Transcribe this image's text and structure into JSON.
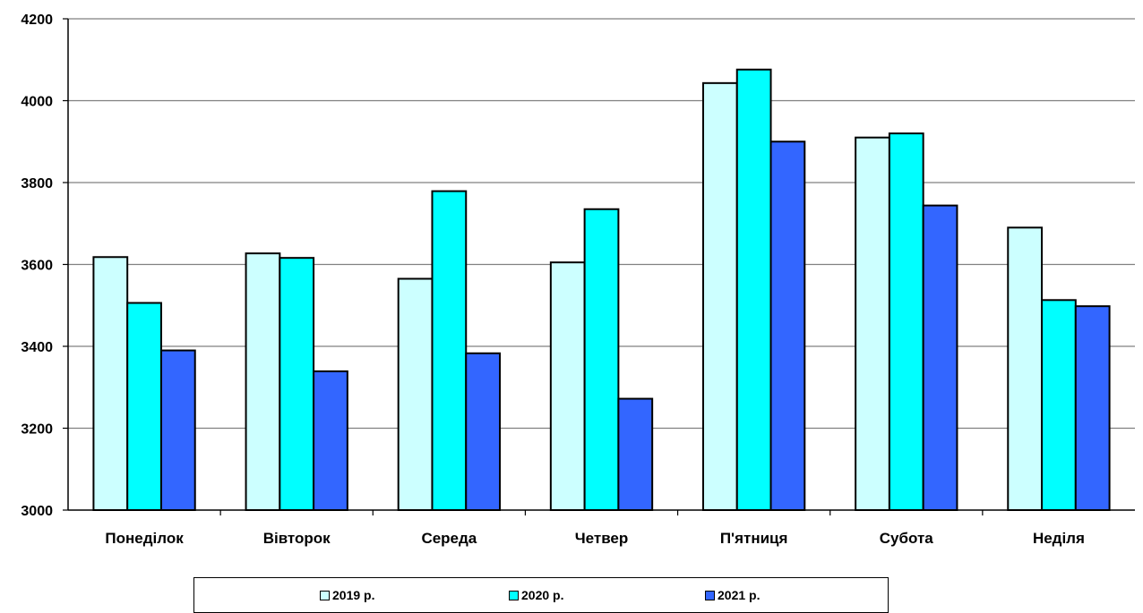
{
  "chart_data": {
    "type": "bar",
    "title": "",
    "xlabel": "",
    "ylabel": "",
    "categories": [
      "Понеділок",
      "Вівторок",
      "Середа",
      "Четвер",
      "П'ятниця",
      "Субота",
      "Неділя"
    ],
    "series": [
      {
        "name": "2019 р.",
        "color": "#ccffff",
        "values": [
          3618,
          3627,
          3565,
          3605,
          4043,
          3910,
          3690
        ]
      },
      {
        "name": "2020 р.",
        "color": "#00ffff",
        "values": [
          3506,
          3616,
          3779,
          3735,
          4076,
          3920,
          3513
        ]
      },
      {
        "name": "2021 р.",
        "color": "#3366ff",
        "values": [
          3390,
          3339,
          3383,
          3272,
          3900,
          3744,
          3498
        ]
      }
    ],
    "ylim": [
      3000,
      4200
    ],
    "yticks": [
      "3000",
      "3200",
      "3400",
      "3600",
      "3800",
      "4000",
      "4200"
    ],
    "grid": true,
    "legend_position": "bottom"
  }
}
